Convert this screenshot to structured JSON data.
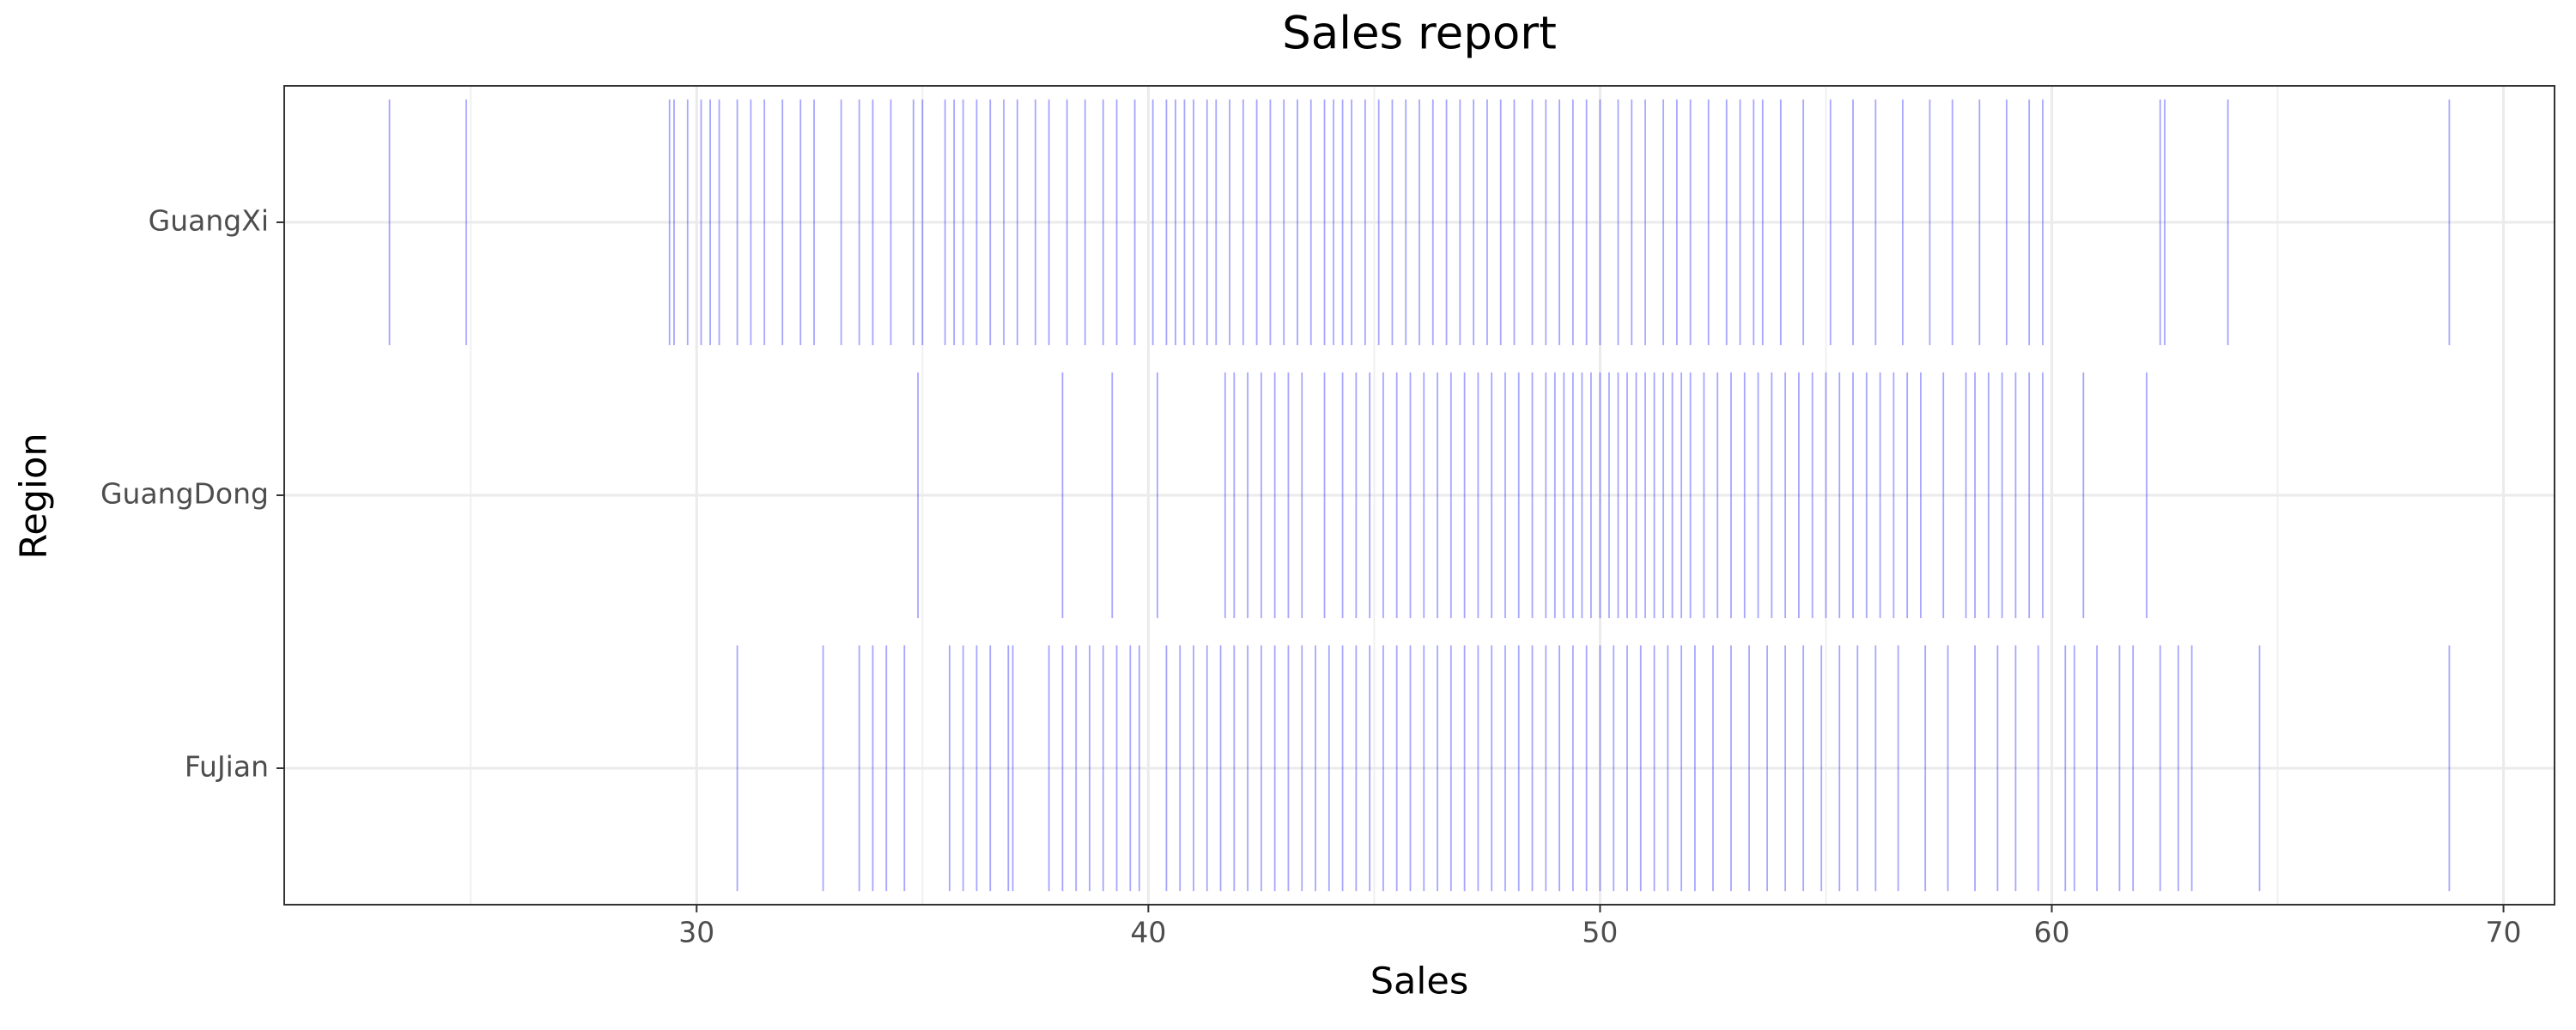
{
  "chart_data": {
    "type": "strip",
    "title": "Sales report",
    "x_label": "Sales",
    "y_label": "Region",
    "categories": [
      "FuJian",
      "GuangDong",
      "GuangXi"
    ],
    "color": "#0000ff",
    "grid": true,
    "xlim": [
      20.87,
      71.13
    ],
    "xticks": [
      30,
      40,
      50,
      60,
      70
    ],
    "xminorticks": [
      25,
      35,
      45,
      55,
      65
    ],
    "values": [
      [
        30.9,
        32.8,
        33.6,
        33.9,
        34.2,
        34.6,
        35.6,
        35.9,
        36.2,
        36.5,
        36.9,
        37.0,
        37.8,
        38.1,
        38.4,
        38.7,
        39.0,
        39.3,
        39.6,
        39.8,
        40.4,
        40.7,
        41.0,
        41.3,
        41.6,
        41.9,
        42.2,
        42.5,
        42.8,
        43.1,
        43.4,
        43.7,
        44.0,
        44.3,
        44.6,
        44.9,
        45.2,
        45.5,
        45.8,
        46.1,
        46.4,
        46.7,
        47.0,
        47.3,
        47.6,
        47.9,
        48.2,
        48.5,
        48.8,
        49.1,
        49.4,
        49.7,
        50.0,
        50.3,
        50.6,
        50.9,
        51.2,
        51.5,
        51.8,
        52.1,
        52.5,
        52.9,
        53.3,
        53.7,
        54.1,
        54.5,
        54.9,
        55.3,
        55.7,
        56.1,
        56.6,
        57.2,
        57.7,
        58.3,
        58.8,
        59.2,
        59.7,
        60.3,
        60.5,
        61.0,
        61.5,
        61.8,
        62.4,
        62.8,
        63.1,
        64.6,
        68.8
      ],
      [
        34.9,
        38.1,
        39.2,
        40.2,
        41.7,
        41.9,
        42.2,
        42.5,
        42.8,
        43.1,
        43.4,
        43.9,
        44.3,
        44.6,
        44.9,
        45.2,
        45.5,
        45.8,
        46.1,
        46.4,
        46.7,
        47.0,
        47.3,
        47.6,
        47.9,
        48.2,
        48.5,
        48.8,
        49.0,
        49.2,
        49.4,
        49.6,
        49.8,
        50.0,
        50.2,
        50.4,
        50.6,
        50.8,
        51.0,
        51.2,
        51.4,
        51.6,
        51.8,
        52.0,
        52.3,
        52.6,
        52.9,
        53.2,
        53.5,
        53.8,
        54.1,
        54.4,
        54.7,
        55.0,
        55.3,
        55.6,
        55.9,
        56.2,
        56.5,
        56.8,
        57.1,
        57.6,
        58.1,
        58.3,
        58.6,
        58.9,
        59.2,
        59.5,
        59.8,
        60.7,
        62.1
      ],
      [
        23.2,
        24.9,
        29.4,
        29.5,
        29.8,
        30.1,
        30.3,
        30.5,
        30.9,
        31.2,
        31.5,
        31.9,
        32.3,
        32.6,
        33.2,
        33.6,
        33.9,
        34.3,
        34.8,
        35.0,
        35.5,
        35.7,
        35.9,
        36.2,
        36.5,
        36.8,
        37.1,
        37.5,
        37.8,
        38.2,
        38.6,
        39.0,
        39.3,
        39.7,
        40.1,
        40.4,
        40.6,
        40.8,
        41.0,
        41.3,
        41.5,
        41.8,
        42.1,
        42.4,
        42.7,
        43.0,
        43.3,
        43.6,
        43.9,
        44.1,
        44.3,
        44.5,
        44.8,
        45.1,
        45.4,
        45.7,
        46.0,
        46.3,
        46.6,
        46.9,
        47.2,
        47.5,
        47.8,
        48.1,
        48.5,
        48.8,
        49.1,
        49.4,
        49.7,
        50.0,
        50.4,
        50.7,
        51.0,
        51.4,
        51.7,
        52.0,
        52.4,
        52.8,
        53.1,
        53.4,
        53.6,
        54.0,
        54.5,
        55.1,
        55.6,
        56.1,
        56.7,
        57.3,
        57.8,
        58.4,
        59.0,
        59.5,
        59.8,
        62.4,
        62.5,
        63.9,
        68.8
      ]
    ]
  }
}
